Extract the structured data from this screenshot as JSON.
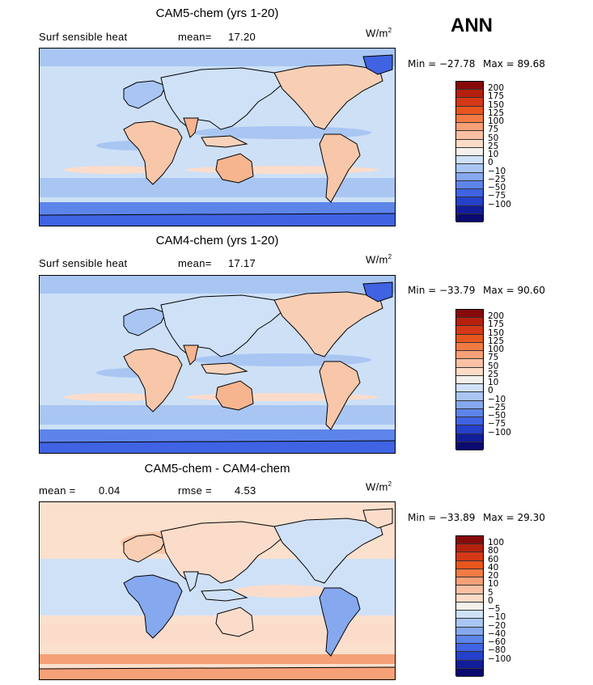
{
  "season": "ANN",
  "units": "W/m",
  "units_exp": "2",
  "panels": [
    {
      "title": "CAM5-chem (yrs 1-20)",
      "left_label": "Surf sensible heat",
      "stat_label": "mean=",
      "stat_value": "17.20",
      "min_text": "Min = −27.78",
      "max_text": "Max =   89.68",
      "colorbar_colors": [
        "#870a0a",
        "#b5200e",
        "#d43816",
        "#e8561e",
        "#f27b43",
        "#f6a077",
        "#fac0a3",
        "#fcdcc7",
        "#f4f1ec",
        "#cfe1f7",
        "#a9c6f3",
        "#86a8ee",
        "#5d84e9",
        "#3f63e2",
        "#2540c9",
        "#111d9b",
        "#0a0a6f"
      ],
      "colorbar_labels": [
        "200",
        "175",
        "150",
        "125",
        "100",
        "75",
        "50",
        "25",
        "10",
        "0",
        "−10",
        "−25",
        "−50",
        "−75",
        "−100"
      ]
    },
    {
      "title": "CAM4-chem (yrs 1-20)",
      "left_label": "Surf sensible heat",
      "stat_label": "mean=",
      "stat_value": "17.17",
      "min_text": "Min = −33.79",
      "max_text": "Max =   90.60",
      "colorbar_colors": [
        "#870a0a",
        "#b5200e",
        "#d43816",
        "#e8561e",
        "#f27b43",
        "#f6a077",
        "#fac0a3",
        "#fcdcc7",
        "#f4f1ec",
        "#cfe1f7",
        "#a9c6f3",
        "#86a8ee",
        "#5d84e9",
        "#3f63e2",
        "#2540c9",
        "#111d9b",
        "#0a0a6f"
      ],
      "colorbar_labels": [
        "200",
        "175",
        "150",
        "125",
        "100",
        "75",
        "50",
        "25",
        "10",
        "0",
        "−10",
        "−25",
        "−50",
        "−75",
        "−100"
      ]
    },
    {
      "title": "CAM5-chem - CAM4-chem",
      "left_label": "mean =",
      "left_value": "0.04",
      "stat_label": "rmse =",
      "stat_value": "4.53",
      "min_text": "Min = −33.89",
      "max_text": "Max =   29.30",
      "colorbar_colors": [
        "#870a0a",
        "#b5200e",
        "#d43816",
        "#e8561e",
        "#f27b43",
        "#f6a077",
        "#fac0a3",
        "#fcdcc7",
        "#f4f1ec",
        "#cfe1f7",
        "#a9c6f3",
        "#86a8ee",
        "#5d84e9",
        "#3f63e2",
        "#2540c9",
        "#111d9b",
        "#0a0a6f"
      ],
      "colorbar_labels": [
        "100",
        "80",
        "60",
        "40",
        "20",
        "10",
        "5",
        "0",
        "−5",
        "−10",
        "−20",
        "−40",
        "−60",
        "−80",
        "−100"
      ]
    }
  ]
}
